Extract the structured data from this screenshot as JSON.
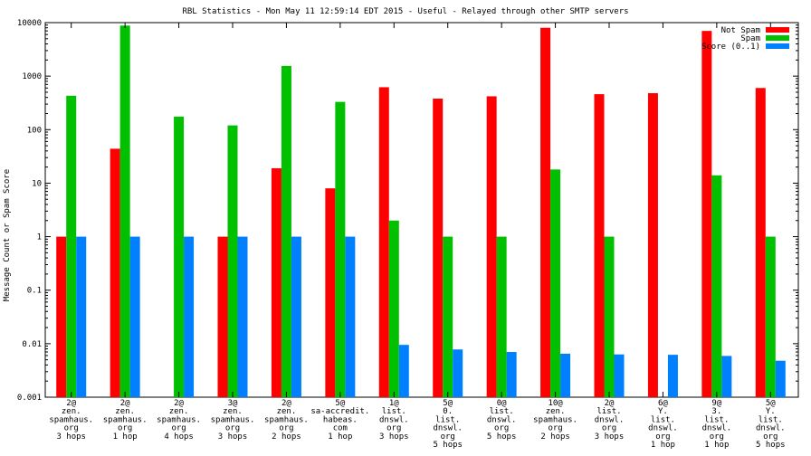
{
  "chart_data": {
    "type": "bar",
    "title": "RBL Statistics - Mon May 11 12:59:14 EDT 2015 - Useful - Relayed through other SMTP servers",
    "ylabel": "Message Count or Spam Score",
    "xlabel": "",
    "yscale": "log",
    "ylim": [
      0.001,
      10000
    ],
    "yticks": [
      "0.001",
      "0.01",
      "0.1",
      "1",
      "10",
      "100",
      "1000",
      "10000"
    ],
    "legend_position": "top-right",
    "categories": [
      [
        "2@",
        "zen.",
        "spamhaus.",
        "org",
        "3 hops"
      ],
      [
        "2@",
        "zen.",
        "spamhaus.",
        "org",
        "1 hop"
      ],
      [
        "2@",
        "zen.",
        "spamhaus.",
        "org",
        "4 hops"
      ],
      [
        "3@",
        "zen.",
        "spamhaus.",
        "org",
        "3 hops"
      ],
      [
        "2@",
        "zen.",
        "spamhaus.",
        "org",
        "2 hops"
      ],
      [
        "5@",
        "sa-accredit.",
        "habeas.",
        "com",
        "1 hop"
      ],
      [
        "1@",
        "list.",
        "dnswl.",
        "org",
        "3 hops"
      ],
      [
        "5@",
        "0.",
        "list.",
        "dnswl.",
        "org",
        "5 hops"
      ],
      [
        "0@",
        "list.",
        "dnswl.",
        "org",
        "5 hops"
      ],
      [
        "10@",
        "zen.",
        "spamhaus.",
        "org",
        "2 hops"
      ],
      [
        "2@",
        "list.",
        "dnswl.",
        "org",
        "3 hops"
      ],
      [
        "6@",
        "Y.",
        "list.",
        "dnswl.",
        "org",
        "1 hop"
      ],
      [
        "9@",
        "3.",
        "list.",
        "dnswl.",
        "org",
        "1 hop"
      ],
      [
        "5@",
        "Y.",
        "list.",
        "dnswl.",
        "org",
        "5 hops"
      ]
    ],
    "series": [
      {
        "name": "Not Spam",
        "color": "#ff0000",
        "values": [
          1,
          44,
          null,
          1,
          19,
          8,
          620,
          380,
          420,
          8000,
          460,
          480,
          7000,
          600
        ]
      },
      {
        "name": "Spam",
        "color": "#00c000",
        "values": [
          430,
          8800,
          175,
          120,
          1550,
          330,
          2,
          1,
          1,
          18,
          1,
          null,
          14,
          1
        ]
      },
      {
        "name": "Score (0..1)",
        "color": "#0080ff",
        "values": [
          1,
          1,
          1,
          1,
          1,
          1,
          0.0095,
          0.0078,
          0.007,
          0.0065,
          0.0063,
          0.0062,
          0.0059,
          0.0048
        ]
      }
    ]
  }
}
